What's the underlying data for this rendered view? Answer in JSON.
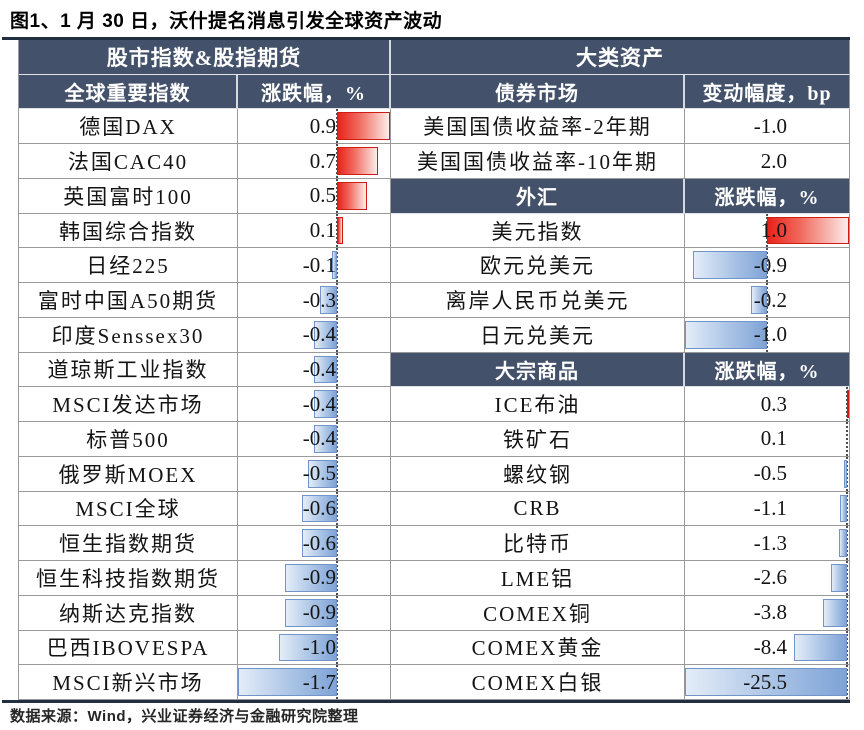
{
  "title": "图1、1 月 30 日，沃什提名消息引发全球资产波动",
  "source_note": "数据来源：Wind，兴业证券经济与金融研究院整理",
  "chart_data": {
    "type": "table",
    "title": "图1、1 月 30 日，沃什提名消息引发全球资产波动",
    "left": {
      "group_header": "股市指数&股指期货",
      "columns": [
        "全球重要指数",
        "涨跌幅，%"
      ],
      "bar_range": {
        "min": -1.7,
        "max": 0.9
      },
      "rows": [
        {
          "label": "德国DAX",
          "value": "0.9",
          "num": 0.9
        },
        {
          "label": "法国CAC40",
          "value": "0.7",
          "num": 0.7
        },
        {
          "label": "英国富时100",
          "value": "0.5",
          "num": 0.5
        },
        {
          "label": "韩国综合指数",
          "value": "0.1",
          "num": 0.1
        },
        {
          "label": "日经225",
          "value": "-0.1",
          "num": -0.1
        },
        {
          "label": "富时中国A50期货",
          "value": "-0.3",
          "num": -0.3
        },
        {
          "label": "印度Senssex30",
          "value": "-0.4",
          "num": -0.4
        },
        {
          "label": "道琼斯工业指数",
          "value": "-0.4",
          "num": -0.4
        },
        {
          "label": "MSCI发达市场",
          "value": "-0.4",
          "num": -0.4
        },
        {
          "label": "标普500",
          "value": "-0.4",
          "num": -0.4
        },
        {
          "label": "俄罗斯MOEX",
          "value": "-0.5",
          "num": -0.5
        },
        {
          "label": "MSCI全球",
          "value": "-0.6",
          "num": -0.6
        },
        {
          "label": "恒生指数期货",
          "value": "-0.6",
          "num": -0.6
        },
        {
          "label": "恒生科技指数期货",
          "value": "-0.9",
          "num": -0.9
        },
        {
          "label": "纳斯达克指数",
          "value": "-0.9",
          "num": -0.9
        },
        {
          "label": "巴西IBOVESPA",
          "value": "-1.0",
          "num": -1.0
        },
        {
          "label": "MSCI新兴市场",
          "value": "-1.7",
          "num": -1.7
        }
      ]
    },
    "right": {
      "group_header": "大类资产",
      "sections": [
        {
          "header": "债券市场",
          "unit": "变动幅度，bp",
          "bars": false,
          "rows": [
            {
              "label": "美国国债收益率-2年期",
              "value": "-1.0",
              "num": -1.0
            },
            {
              "label": "美国国债收益率-10年期",
              "value": "2.0",
              "num": 2.0
            }
          ]
        },
        {
          "header": "外汇",
          "unit": "涨跌幅，%",
          "bars": true,
          "bar_range": {
            "min": -1.0,
            "max": 1.0
          },
          "rows": [
            {
              "label": "美元指数",
              "value": "1.0",
              "num": 1.0
            },
            {
              "label": "欧元兑美元",
              "value": "-0.9",
              "num": -0.9
            },
            {
              "label": "离岸人民币兑美元",
              "value": "-0.2",
              "num": -0.2
            },
            {
              "label": "日元兑美元",
              "value": "-1.0",
              "num": -1.0
            }
          ]
        },
        {
          "header": "大宗商品",
          "unit": "涨跌幅，%",
          "bars": true,
          "bar_range": {
            "min": -25.5,
            "max": 0.3
          },
          "rows": [
            {
              "label": "ICE布油",
              "value": "0.3",
              "num": 0.3
            },
            {
              "label": "铁矿石",
              "value": "0.1",
              "num": 0.1
            },
            {
              "label": "螺纹钢",
              "value": "-0.5",
              "num": -0.5
            },
            {
              "label": "CRB",
              "value": "-1.1",
              "num": -1.1
            },
            {
              "label": "比特币",
              "value": "-1.3",
              "num": -1.3
            },
            {
              "label": "LME铝",
              "value": "-2.6",
              "num": -2.6
            },
            {
              "label": "COMEX铜",
              "value": "-3.8",
              "num": -3.8
            },
            {
              "label": "COMEX黄金",
              "value": "-8.4",
              "num": -8.4
            },
            {
              "label": "COMEX白银",
              "value": "-25.5",
              "num": -25.5
            }
          ]
        }
      ]
    }
  },
  "colors": {
    "header_bg": "#43516A",
    "positive_bar": "#E8231B",
    "negative_bar": "#7FA3D6",
    "grid_line": "#999999",
    "rule": "#20303F"
  }
}
